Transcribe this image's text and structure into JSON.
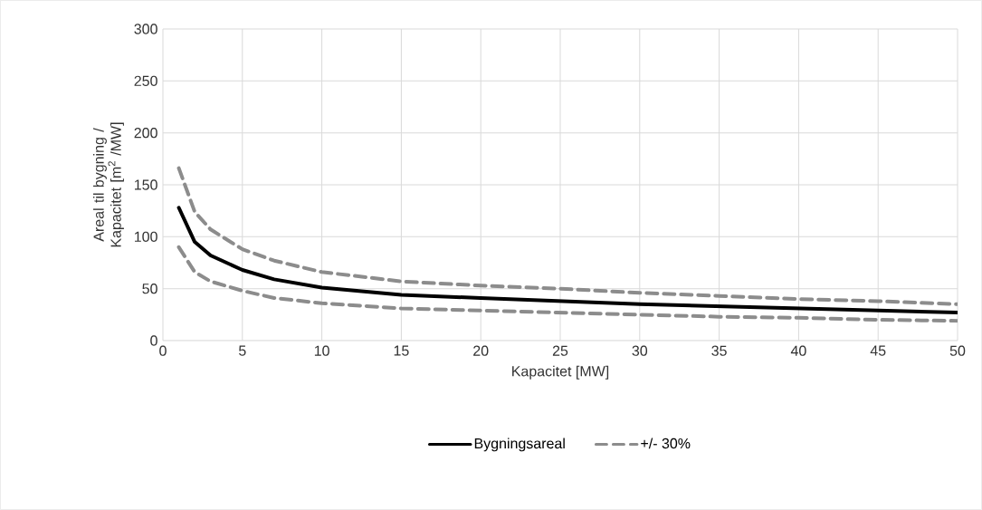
{
  "chart_data": {
    "type": "line",
    "xlabel": "Kapacitet [MW]",
    "ylabel": "Areal til bygning / Kapacitet [m$^{2}$ /MW]",
    "xlim": [
      0,
      50
    ],
    "xticks": [
      0,
      5,
      10,
      15,
      20,
      25,
      30,
      35,
      40,
      45,
      50
    ],
    "ylim": [
      0,
      300
    ],
    "yticks": [
      0,
      50,
      100,
      150,
      200,
      250,
      300
    ],
    "grid": true,
    "legend": "bottom",
    "marker": "none",
    "series": [
      {
        "name": "Bygningsareal",
        "color": "#000000",
        "line_style": "solid",
        "x": [
          1,
          2,
          3,
          5,
          7,
          10,
          15,
          20,
          25,
          30,
          35,
          40,
          45,
          50
        ],
        "values": [
          128,
          95,
          82,
          68,
          59,
          51,
          44,
          41,
          38,
          35,
          33,
          31,
          29,
          27
        ]
      },
      {
        "name": "+/- 30%",
        "color": "#8c8c8c",
        "line_style": "dashed",
        "x": [
          1,
          2,
          3,
          5,
          7,
          10,
          15,
          20,
          25,
          30,
          35,
          40,
          45,
          50
        ],
        "values": [
          166,
          124,
          107,
          88,
          77,
          66,
          57,
          53,
          50,
          46,
          43,
          40,
          38,
          35
        ]
      },
      {
        "color": "#8c8c8c",
        "line_style": "dashed",
        "x": [
          1,
          2,
          3,
          5,
          7,
          10,
          15,
          20,
          25,
          30,
          35,
          40,
          45,
          50
        ],
        "values": [
          90,
          66,
          57,
          48,
          41,
          36,
          31,
          29,
          27,
          25,
          23,
          22,
          20,
          19
        ]
      }
    ]
  }
}
